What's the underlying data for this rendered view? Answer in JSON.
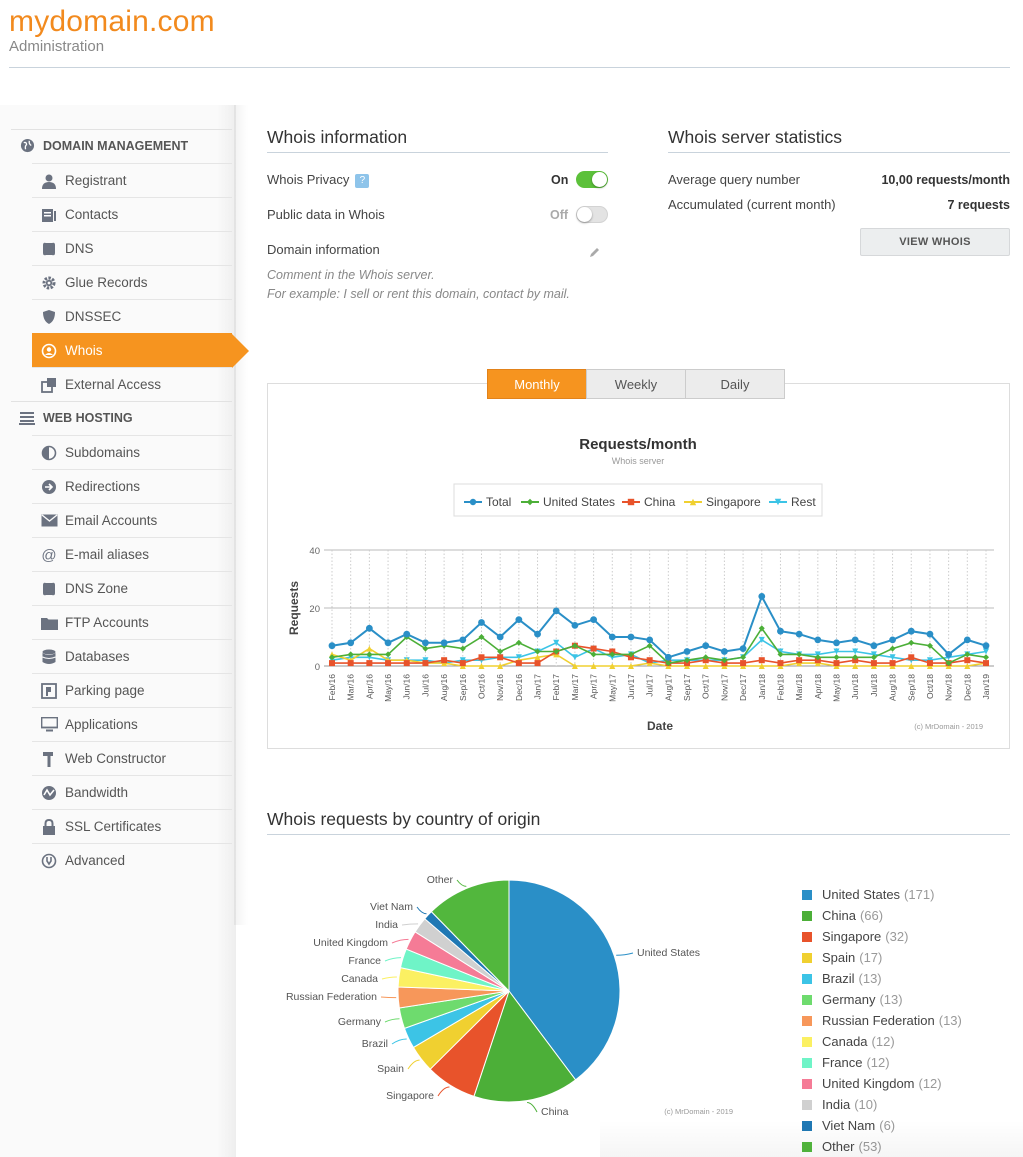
{
  "header": {
    "brand": "mydomain.com",
    "subtitle": "Administration"
  },
  "sidebar": {
    "sections": [
      {
        "title": "DOMAIN MANAGEMENT",
        "icon": "globe-icon",
        "items": [
          {
            "label": "Registrant",
            "icon": "user-icon"
          },
          {
            "label": "Contacts",
            "icon": "contacts-icon"
          },
          {
            "label": "DNS",
            "icon": "dns-icon"
          },
          {
            "label": "Glue Records",
            "icon": "gear-icon"
          },
          {
            "label": "DNSSEC",
            "icon": "shield-icon"
          },
          {
            "label": "Whois",
            "icon": "whois-icon",
            "active": true
          },
          {
            "label": "External Access",
            "icon": "external-access-icon"
          }
        ]
      },
      {
        "title": "WEB HOSTING",
        "icon": "server-icon",
        "items": [
          {
            "label": "Subdomains",
            "icon": "half-circle-icon"
          },
          {
            "label": "Redirections",
            "icon": "arrow-right-circle-icon"
          },
          {
            "label": "Email Accounts",
            "icon": "envelope-icon"
          },
          {
            "label": "E-mail aliases",
            "icon": "at-icon"
          },
          {
            "label": "DNS Zone",
            "icon": "dns-icon"
          },
          {
            "label": "FTP Accounts",
            "icon": "folder-icon"
          },
          {
            "label": "Databases",
            "icon": "database-icon"
          },
          {
            "label": "Parking page",
            "icon": "parking-icon"
          },
          {
            "label": "Applications",
            "icon": "monitor-icon"
          },
          {
            "label": "Web Constructor",
            "icon": "hammer-icon"
          },
          {
            "label": "Bandwidth",
            "icon": "bandwidth-icon"
          },
          {
            "label": "SSL Certificates",
            "icon": "lock-icon"
          },
          {
            "label": "Advanced",
            "icon": "wrench-circle-icon"
          }
        ]
      }
    ]
  },
  "whois_info": {
    "title": "Whois information",
    "privacy_label": "Whois Privacy",
    "privacy_help": "?",
    "privacy_state": "On",
    "public_label": "Public data in Whois",
    "public_state": "Off",
    "domain_info_label": "Domain information",
    "comment_line1": "Comment in the Whois server.",
    "comment_line2": "For example: I sell or rent this domain, contact by mail."
  },
  "server_stats": {
    "title": "Whois server statistics",
    "avg_label": "Average query number",
    "avg_value": "10,00 requests/month",
    "acc_label": "Accumulated (current month)",
    "acc_value": "7 requests",
    "button": "VIEW WHOIS"
  },
  "tabs": [
    "Monthly",
    "Weekly",
    "Daily"
  ],
  "line_credit": "(c) MrDomain - 2019",
  "pie_title": "Whois requests by country of origin",
  "pie_credit": "(c) MrDomain - 2019",
  "colors": {
    "accent": "#f6941f",
    "toggle_on": "#5cc13a",
    "toggle_off": "#e3e3e3"
  },
  "chart_data": [
    {
      "type": "line",
      "title": "Requests/month",
      "subtitle": "Whois server",
      "xlabel": "Date",
      "ylabel": "Requests",
      "ylim": [
        0,
        40
      ],
      "yticks": [
        0,
        20,
        40
      ],
      "grid": true,
      "legend": "top",
      "x": [
        "Feb/16",
        "Mar/16",
        "Apr/16",
        "May/16",
        "Jun/16",
        "Jul/16",
        "Aug/16",
        "Sep/16",
        "Oct/16",
        "Nov/16",
        "Dec/16",
        "Jan/17",
        "Feb/17",
        "Mar/17",
        "Apr/17",
        "May/17",
        "Jun/17",
        "Jul/17",
        "Aug/17",
        "Sep/17",
        "Oct/17",
        "Nov/17",
        "Dec/17",
        "Jan/18",
        "Feb/18",
        "Mar/18",
        "Apr/18",
        "May/18",
        "Jun/18",
        "Jul/18",
        "Aug/18",
        "Sep/18",
        "Oct/18",
        "Nov/18",
        "Dec/18",
        "Jan/19"
      ],
      "series": [
        {
          "name": "Total",
          "color": "#2a8fc7",
          "marker": "circle",
          "values": [
            7,
            8,
            13,
            8,
            11,
            8,
            8,
            9,
            15,
            10,
            16,
            11,
            19,
            14,
            16,
            10,
            10,
            9,
            3,
            5,
            7,
            5,
            6,
            24,
            12,
            11,
            9,
            8,
            9,
            7,
            9,
            12,
            11,
            4,
            9,
            7
          ]
        },
        {
          "name": "United States",
          "color": "#4caf38",
          "marker": "diamond",
          "values": [
            3,
            4,
            4,
            4,
            10,
            6,
            7,
            6,
            10,
            5,
            8,
            5,
            5,
            7,
            4,
            4,
            4,
            7,
            1,
            2,
            3,
            2,
            3,
            13,
            4,
            4,
            3,
            3,
            3,
            3,
            6,
            8,
            7,
            1,
            4,
            3
          ]
        },
        {
          "name": "China",
          "color": "#e8532b",
          "marker": "square",
          "values": [
            1,
            1,
            1,
            1,
            1,
            1,
            2,
            1,
            3,
            3,
            1,
            1,
            5,
            7,
            6,
            5,
            3,
            2,
            1,
            1,
            2,
            1,
            1,
            2,
            1,
            2,
            2,
            1,
            2,
            1,
            1,
            3,
            1,
            1,
            2,
            1
          ]
        },
        {
          "name": "Singapore",
          "color": "#f0d030",
          "marker": "triangle",
          "values": [
            4,
            2,
            6,
            2,
            2,
            1,
            1,
            0,
            0,
            0,
            2,
            3,
            4,
            0,
            0,
            0,
            0,
            1,
            0,
            0,
            0,
            0,
            0,
            0,
            0,
            1,
            1,
            0,
            0,
            0,
            0,
            0,
            0,
            0,
            0,
            1
          ]
        },
        {
          "name": "Rest",
          "color": "#3cc4e6",
          "marker": "triangle-down",
          "values": [
            2,
            3,
            3,
            2,
            2,
            2,
            1,
            2,
            2,
            3,
            3,
            5,
            8,
            3,
            6,
            3,
            4,
            1,
            2,
            2,
            2,
            2,
            3,
            9,
            5,
            4,
            4,
            5,
            5,
            4,
            3,
            2,
            2,
            3,
            4,
            5
          ]
        }
      ]
    },
    {
      "type": "pie",
      "slices": [
        {
          "label": "United States",
          "value": 171,
          "color": "#2a8fc7"
        },
        {
          "label": "China",
          "value": 66,
          "color": "#4caf38"
        },
        {
          "label": "Singapore",
          "value": 32,
          "color": "#e8532b"
        },
        {
          "label": "Spain",
          "value": 17,
          "color": "#f0d030"
        },
        {
          "label": "Brazil",
          "value": 13,
          "color": "#3cc4e6"
        },
        {
          "label": "Germany",
          "value": 13,
          "color": "#6edb6e"
        },
        {
          "label": "Russian Federation",
          "value": 13,
          "color": "#f7975a"
        },
        {
          "label": "Canada",
          "value": 12,
          "color": "#fbf062"
        },
        {
          "label": "France",
          "value": 12,
          "color": "#6ff4c7"
        },
        {
          "label": "United Kingdom",
          "value": 12,
          "color": "#f57b96"
        },
        {
          "label": "India",
          "value": 10,
          "color": "#d0d0d0"
        },
        {
          "label": "Viet Nam",
          "value": 6,
          "color": "#1f78b4"
        },
        {
          "label": "Other",
          "value": 53,
          "color": "#52b73d"
        }
      ]
    }
  ]
}
